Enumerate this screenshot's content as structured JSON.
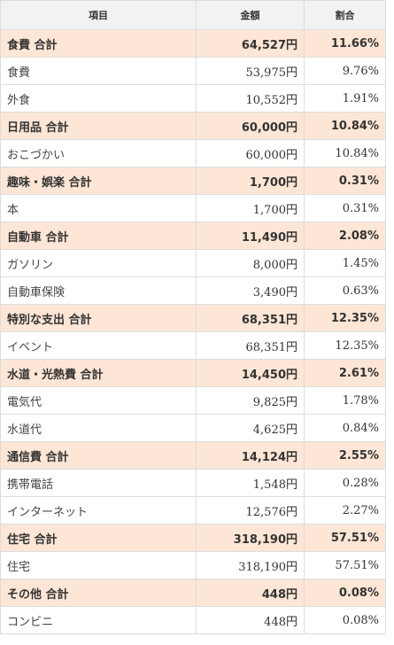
{
  "headers": {
    "item": "項目",
    "amount": "金額",
    "ratio": "割合"
  },
  "rows": [
    {
      "type": "total",
      "name": "食費 合計",
      "amount": "64,527円",
      "ratio": "11.66%"
    },
    {
      "type": "item",
      "name": "食費",
      "amount": "53,975円",
      "ratio": "9.76%"
    },
    {
      "type": "item",
      "name": "外食",
      "amount": "10,552円",
      "ratio": "1.91%"
    },
    {
      "type": "total",
      "name": "日用品 合計",
      "amount": "60,000円",
      "ratio": "10.84%"
    },
    {
      "type": "item",
      "name": "おこづかい",
      "amount": "60,000円",
      "ratio": "10.84%"
    },
    {
      "type": "total",
      "name": "趣味・娯楽 合計",
      "amount": "1,700円",
      "ratio": "0.31%"
    },
    {
      "type": "item",
      "name": "本",
      "amount": "1,700円",
      "ratio": "0.31%"
    },
    {
      "type": "total",
      "name": "自動車 合計",
      "amount": "11,490円",
      "ratio": "2.08%"
    },
    {
      "type": "item",
      "name": "ガソリン",
      "amount": "8,000円",
      "ratio": "1.45%"
    },
    {
      "type": "item",
      "name": "自動車保険",
      "amount": "3,490円",
      "ratio": "0.63%"
    },
    {
      "type": "total",
      "name": "特別な支出 合計",
      "amount": "68,351円",
      "ratio": "12.35%"
    },
    {
      "type": "item",
      "name": "イベント",
      "amount": "68,351円",
      "ratio": "12.35%"
    },
    {
      "type": "total",
      "name": "水道・光熱費 合計",
      "amount": "14,450円",
      "ratio": "2.61%"
    },
    {
      "type": "item",
      "name": "電気代",
      "amount": "9,825円",
      "ratio": "1.78%"
    },
    {
      "type": "item",
      "name": "水道代",
      "amount": "4,625円",
      "ratio": "0.84%"
    },
    {
      "type": "total",
      "name": "通信費 合計",
      "amount": "14,124円",
      "ratio": "2.55%"
    },
    {
      "type": "item",
      "name": "携帯電話",
      "amount": "1,548円",
      "ratio": "0.28%"
    },
    {
      "type": "item",
      "name": "インターネット",
      "amount": "12,576円",
      "ratio": "2.27%"
    },
    {
      "type": "total",
      "name": "住宅 合計",
      "amount": "318,190円",
      "ratio": "57.51%"
    },
    {
      "type": "item",
      "name": "住宅",
      "amount": "318,190円",
      "ratio": "57.51%"
    },
    {
      "type": "total",
      "name": "その他 合計",
      "amount": "448円",
      "ratio": "0.08%"
    },
    {
      "type": "item",
      "name": "コンビニ",
      "amount": "448円",
      "ratio": "0.08%"
    }
  ],
  "colors": {
    "total_row_bg": "#fde6d6",
    "header_bg": "#f2f2f2",
    "border": "#dddddd"
  }
}
